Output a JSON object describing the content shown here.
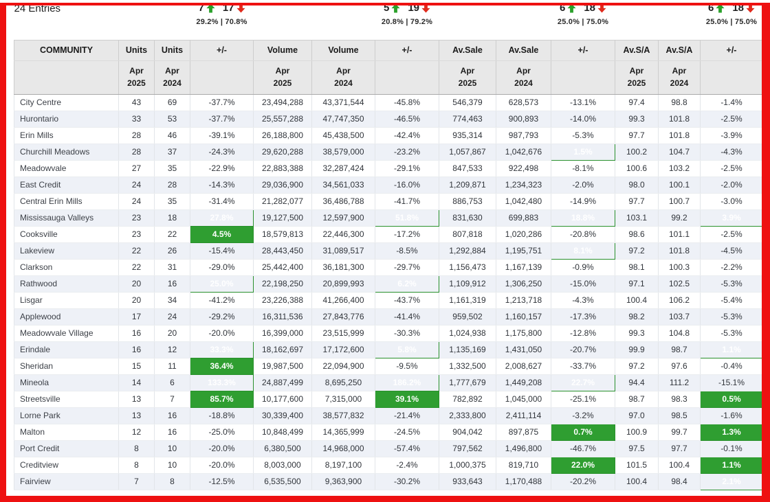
{
  "page": {
    "entries_label": "24 Entries"
  },
  "colors": {
    "positive_green": "#2f9e31",
    "up_arrow_green": "#2aa02a",
    "down_arrow_red": "#e02b1d",
    "frame_red": "#ee1111",
    "header_bg": "#e8e8e8",
    "alt_row": "#eef1f7"
  },
  "stats": {
    "units": {
      "up": "7",
      "down": "17",
      "split": "29.2% | 70.8%"
    },
    "volume": {
      "up": "5",
      "down": "19",
      "split": "20.8% | 79.2%"
    },
    "avsale": {
      "up": "6",
      "down": "18",
      "split": "25.0% | 75.0%"
    },
    "avsa": {
      "up": "6",
      "down": "18",
      "split": "25.0% | 75.0%"
    }
  },
  "columns": {
    "main": [
      "COMMUNITY",
      "Units",
      "Units",
      "+/-",
      "Volume",
      "Volume",
      "+/-",
      "Av.Sale",
      "Av.Sale",
      "+/-",
      "Av.S/A",
      "Av.S/A",
      "+/-"
    ],
    "sub": [
      "",
      "Apr\n2025",
      "Apr\n2024",
      "",
      "Apr\n2025",
      "Apr\n2024",
      "",
      "Apr\n2025",
      "Apr\n2024",
      "",
      "Apr\n2025",
      "Apr\n2024",
      ""
    ]
  },
  "chart_data": {
    "type": "table",
    "title": "24 Entries",
    "change_columns": [
      3,
      6,
      9,
      12
    ]
  },
  "rows": [
    [
      "City Centre",
      "43",
      "69",
      "-37.7%",
      "23,494,288",
      "43,371,544",
      "-45.8%",
      "546,379",
      "628,573",
      "-13.1%",
      "97.4",
      "98.8",
      "-1.4%"
    ],
    [
      "Hurontario",
      "33",
      "53",
      "-37.7%",
      "25,557,288",
      "47,747,350",
      "-46.5%",
      "774,463",
      "900,893",
      "-14.0%",
      "99.3",
      "101.8",
      "-2.5%"
    ],
    [
      "Erin Mills",
      "28",
      "46",
      "-39.1%",
      "26,188,800",
      "45,438,500",
      "-42.4%",
      "935,314",
      "987,793",
      "-5.3%",
      "97.7",
      "101.8",
      "-3.9%"
    ],
    [
      "Churchill Meadows",
      "28",
      "37",
      "-24.3%",
      "29,620,288",
      "38,579,000",
      "-23.2%",
      "1,057,867",
      "1,042,676",
      "1.5%",
      "100.2",
      "104.7",
      "-4.3%"
    ],
    [
      "Meadowvale",
      "27",
      "35",
      "-22.9%",
      "22,883,388",
      "32,287,424",
      "-29.1%",
      "847,533",
      "922,498",
      "-8.1%",
      "100.6",
      "103.2",
      "-2.5%"
    ],
    [
      "East Credit",
      "24",
      "28",
      "-14.3%",
      "29,036,900",
      "34,561,033",
      "-16.0%",
      "1,209,871",
      "1,234,323",
      "-2.0%",
      "98.0",
      "100.1",
      "-2.0%"
    ],
    [
      "Central Erin Mills",
      "24",
      "35",
      "-31.4%",
      "21,282,077",
      "36,486,788",
      "-41.7%",
      "886,753",
      "1,042,480",
      "-14.9%",
      "97.7",
      "100.7",
      "-3.0%"
    ],
    [
      "Mississauga Valleys",
      "23",
      "18",
      "27.8%",
      "19,127,500",
      "12,597,900",
      "51.8%",
      "831,630",
      "699,883",
      "18.8%",
      "103.1",
      "99.2",
      "3.9%"
    ],
    [
      "Cooksville",
      "23",
      "22",
      "4.5%",
      "18,579,813",
      "22,446,300",
      "-17.2%",
      "807,818",
      "1,020,286",
      "-20.8%",
      "98.6",
      "101.1",
      "-2.5%"
    ],
    [
      "Lakeview",
      "22",
      "26",
      "-15.4%",
      "28,443,450",
      "31,089,517",
      "-8.5%",
      "1,292,884",
      "1,195,751",
      "8.1%",
      "97.2",
      "101.8",
      "-4.5%"
    ],
    [
      "Clarkson",
      "22",
      "31",
      "-29.0%",
      "25,442,400",
      "36,181,300",
      "-29.7%",
      "1,156,473",
      "1,167,139",
      "-0.9%",
      "98.1",
      "100.3",
      "-2.2%"
    ],
    [
      "Rathwood",
      "20",
      "16",
      "25.0%",
      "22,198,250",
      "20,899,993",
      "6.2%",
      "1,109,912",
      "1,306,250",
      "-15.0%",
      "97.1",
      "102.5",
      "-5.3%"
    ],
    [
      "Lisgar",
      "20",
      "34",
      "-41.2%",
      "23,226,388",
      "41,266,400",
      "-43.7%",
      "1,161,319",
      "1,213,718",
      "-4.3%",
      "100.4",
      "106.2",
      "-5.4%"
    ],
    [
      "Applewood",
      "17",
      "24",
      "-29.2%",
      "16,311,536",
      "27,843,776",
      "-41.4%",
      "959,502",
      "1,160,157",
      "-17.3%",
      "98.2",
      "103.7",
      "-5.3%"
    ],
    [
      "Meadowvale Village",
      "16",
      "20",
      "-20.0%",
      "16,399,000",
      "23,515,999",
      "-30.3%",
      "1,024,938",
      "1,175,800",
      "-12.8%",
      "99.3",
      "104.8",
      "-5.3%"
    ],
    [
      "Erindale",
      "16",
      "12",
      "33.3%",
      "18,162,697",
      "17,172,600",
      "5.8%",
      "1,135,169",
      "1,431,050",
      "-20.7%",
      "99.9",
      "98.7",
      "1.1%"
    ],
    [
      "Sheridan",
      "15",
      "11",
      "36.4%",
      "19,987,500",
      "22,094,900",
      "-9.5%",
      "1,332,500",
      "2,008,627",
      "-33.7%",
      "97.2",
      "97.6",
      "-0.4%"
    ],
    [
      "Mineola",
      "14",
      "6",
      "133.3%",
      "24,887,499",
      "8,695,250",
      "186.2%",
      "1,777,679",
      "1,449,208",
      "22.7%",
      "94.4",
      "111.2",
      "-15.1%"
    ],
    [
      "Streetsville",
      "13",
      "7",
      "85.7%",
      "10,177,600",
      "7,315,000",
      "39.1%",
      "782,892",
      "1,045,000",
      "-25.1%",
      "98.7",
      "98.3",
      "0.5%"
    ],
    [
      "Lorne Park",
      "13",
      "16",
      "-18.8%",
      "30,339,400",
      "38,577,832",
      "-21.4%",
      "2,333,800",
      "2,411,114",
      "-3.2%",
      "97.0",
      "98.5",
      "-1.6%"
    ],
    [
      "Malton",
      "12",
      "16",
      "-25.0%",
      "10,848,499",
      "14,365,999",
      "-24.5%",
      "904,042",
      "897,875",
      "0.7%",
      "100.9",
      "99.7",
      "1.3%"
    ],
    [
      "Port Credit",
      "8",
      "10",
      "-20.0%",
      "6,380,500",
      "14,968,000",
      "-57.4%",
      "797,562",
      "1,496,800",
      "-46.7%",
      "97.5",
      "97.7",
      "-0.1%"
    ],
    [
      "Creditview",
      "8",
      "10",
      "-20.0%",
      "8,003,000",
      "8,197,100",
      "-2.4%",
      "1,000,375",
      "819,710",
      "22.0%",
      "101.5",
      "100.4",
      "1.1%"
    ],
    [
      "Fairview",
      "7",
      "8",
      "-12.5%",
      "6,535,500",
      "9,363,900",
      "-30.2%",
      "933,643",
      "1,170,488",
      "-20.2%",
      "100.4",
      "98.4",
      "2.1%"
    ]
  ]
}
